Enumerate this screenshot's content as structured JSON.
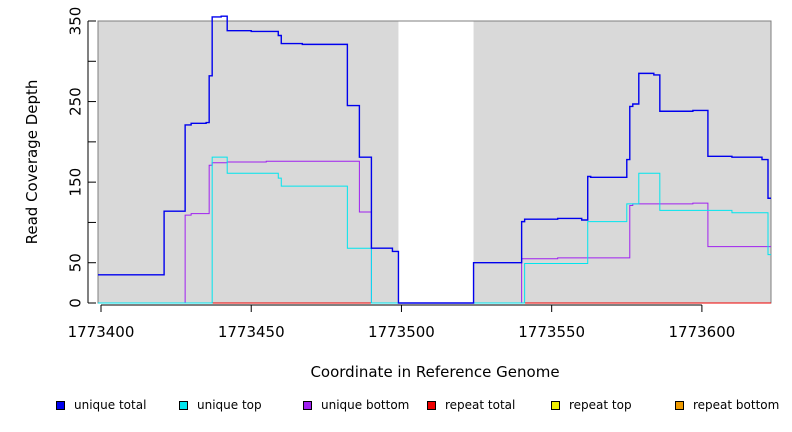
{
  "chart_data": {
    "type": "line",
    "title": "",
    "xlabel": "Coordinate in Reference Genome",
    "ylabel": "Read Coverage Depth",
    "xlim": [
      1773399,
      1773623
    ],
    "ylim": [
      0,
      350
    ],
    "x_ticks": [
      1773400,
      1773450,
      1773500,
      1773550,
      1773600
    ],
    "x_tick_labels": [
      "1773400",
      "1773450",
      "1773500",
      "1773550",
      "1773600"
    ],
    "y_ticks": [
      0,
      50,
      100,
      150,
      200,
      250,
      300,
      350
    ],
    "y_tick_labels": [
      "0",
      "50",
      "",
      "150",
      "",
      "250",
      "",
      "350"
    ],
    "shaded_regions": [
      {
        "x": [
          1773399,
          1773499
        ],
        "color": "#d9d9d9"
      },
      {
        "x": [
          1773524,
          1773623
        ],
        "color": "#d9d9d9"
      }
    ],
    "series": [
      {
        "name": "unique total",
        "color": "#0000ee",
        "points": [
          [
            1773399,
            35
          ],
          [
            1773421,
            35
          ],
          [
            1773421,
            114
          ],
          [
            1773428,
            114
          ],
          [
            1773428,
            221
          ],
          [
            1773430,
            221
          ],
          [
            1773430,
            223
          ],
          [
            1773435,
            223
          ],
          [
            1773435,
            224
          ],
          [
            1773436,
            224
          ],
          [
            1773436,
            282
          ],
          [
            1773437,
            282
          ],
          [
            1773437,
            355
          ],
          [
            1773440,
            355
          ],
          [
            1773440,
            356
          ],
          [
            1773442,
            356
          ],
          [
            1773442,
            338
          ],
          [
            1773450,
            338
          ],
          [
            1773450,
            337
          ],
          [
            1773459,
            337
          ],
          [
            1773459,
            332
          ],
          [
            1773460,
            332
          ],
          [
            1773460,
            322
          ],
          [
            1773467,
            322
          ],
          [
            1773467,
            321
          ],
          [
            1773482,
            321
          ],
          [
            1773482,
            245
          ],
          [
            1773486,
            245
          ],
          [
            1773486,
            181
          ],
          [
            1773490,
            181
          ],
          [
            1773490,
            68
          ],
          [
            1773497,
            68
          ],
          [
            1773497,
            64
          ],
          [
            1773499,
            64
          ],
          [
            1773499,
            0
          ],
          [
            1773524,
            0
          ],
          [
            1773524,
            50
          ],
          [
            1773540,
            50
          ],
          [
            1773540,
            101
          ],
          [
            1773541,
            101
          ],
          [
            1773541,
            104
          ],
          [
            1773552,
            104
          ],
          [
            1773552,
            105
          ],
          [
            1773560,
            105
          ],
          [
            1773560,
            103
          ],
          [
            1773562,
            103
          ],
          [
            1773562,
            157
          ],
          [
            1773563,
            157
          ],
          [
            1773563,
            156
          ],
          [
            1773575,
            156
          ],
          [
            1773575,
            178
          ],
          [
            1773576,
            178
          ],
          [
            1773576,
            244
          ],
          [
            1773577,
            244
          ],
          [
            1773577,
            247
          ],
          [
            1773579,
            247
          ],
          [
            1773579,
            285
          ],
          [
            1773584,
            285
          ],
          [
            1773584,
            283
          ],
          [
            1773586,
            283
          ],
          [
            1773586,
            238
          ],
          [
            1773597,
            238
          ],
          [
            1773597,
            239
          ],
          [
            1773602,
            239
          ],
          [
            1773602,
            182
          ],
          [
            1773610,
            182
          ],
          [
            1773610,
            181
          ],
          [
            1773620,
            181
          ],
          [
            1773620,
            178
          ],
          [
            1773622,
            178
          ],
          [
            1773622,
            130
          ],
          [
            1773623,
            130
          ]
        ]
      },
      {
        "name": "unique top",
        "color": "#00e5ee",
        "points": [
          [
            1773399,
            0
          ],
          [
            1773437,
            0
          ],
          [
            1773437,
            181
          ],
          [
            1773442,
            181
          ],
          [
            1773442,
            161
          ],
          [
            1773459,
            161
          ],
          [
            1773459,
            155
          ],
          [
            1773460,
            155
          ],
          [
            1773460,
            145
          ],
          [
            1773482,
            145
          ],
          [
            1773482,
            68
          ],
          [
            1773490,
            68
          ],
          [
            1773490,
            0
          ],
          [
            1773541,
            0
          ],
          [
            1773541,
            49
          ],
          [
            1773562,
            49
          ],
          [
            1773562,
            101
          ],
          [
            1773575,
            101
          ],
          [
            1773575,
            123
          ],
          [
            1773579,
            123
          ],
          [
            1773579,
            161
          ],
          [
            1773586,
            161
          ],
          [
            1773586,
            115
          ],
          [
            1773610,
            115
          ],
          [
            1773610,
            112
          ],
          [
            1773622,
            112
          ],
          [
            1773622,
            60
          ],
          [
            1773623,
            60
          ]
        ]
      },
      {
        "name": "unique bottom",
        "color": "#a020f0",
        "points": [
          [
            1773399,
            0
          ],
          [
            1773428,
            0
          ],
          [
            1773428,
            109
          ],
          [
            1773430,
            109
          ],
          [
            1773430,
            111
          ],
          [
            1773436,
            111
          ],
          [
            1773436,
            171
          ],
          [
            1773437,
            171
          ],
          [
            1773437,
            174
          ],
          [
            1773442,
            174
          ],
          [
            1773442,
            175
          ],
          [
            1773455,
            175
          ],
          [
            1773455,
            176
          ],
          [
            1773486,
            176
          ],
          [
            1773486,
            113
          ],
          [
            1773490,
            113
          ],
          [
            1773490,
            0
          ],
          [
            1773540,
            0
          ],
          [
            1773540,
            55
          ],
          [
            1773552,
            55
          ],
          [
            1773552,
            56
          ],
          [
            1773576,
            56
          ],
          [
            1773576,
            121
          ],
          [
            1773577,
            121
          ],
          [
            1773577,
            123
          ],
          [
            1773597,
            123
          ],
          [
            1773597,
            124
          ],
          [
            1773602,
            124
          ],
          [
            1773602,
            70
          ],
          [
            1773623,
            70
          ]
        ]
      },
      {
        "name": "repeat total",
        "color": "#ee0000",
        "points": [
          [
            1773399,
            0
          ],
          [
            1773623,
            0
          ]
        ]
      },
      {
        "name": "repeat top",
        "color": "#eeee00",
        "points": [
          [
            1773399,
            0
          ],
          [
            1773623,
            0
          ]
        ]
      },
      {
        "name": "repeat bottom",
        "color": "#ee9a00",
        "points": [
          [
            1773399,
            0
          ],
          [
            1773623,
            0
          ]
        ]
      }
    ],
    "legend": {
      "position": "bottom"
    }
  }
}
